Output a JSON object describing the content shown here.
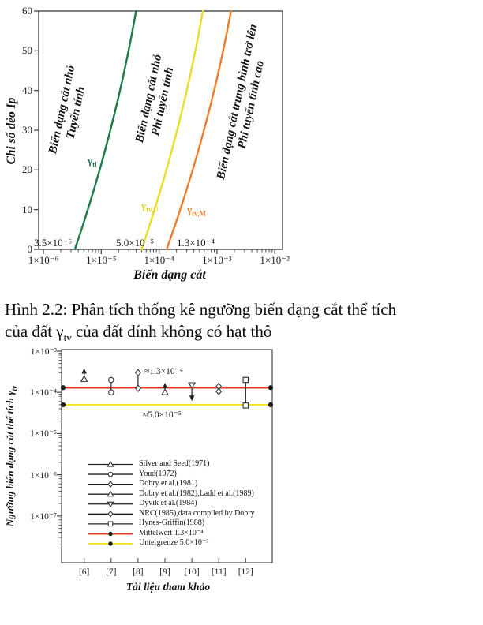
{
  "caption": {
    "line1": "Hình 2.2: Phân tích thống kê ngưỡng biến dạng cắt thể tích",
    "line2_pre": "của đất γ",
    "line2_sub": "tv",
    "line2_post": " của đất dính không có hạt thô"
  },
  "chart_data": [
    {
      "type": "line",
      "title": "",
      "xlabel": "Biến dạng cắt",
      "ylabel": "Chi số dẻo Ip",
      "xscale": "log",
      "xlim": [
        1e-06,
        0.01
      ],
      "ylim": [
        0,
        60
      ],
      "grid": false,
      "ytick_labels": [
        "0",
        "10",
        "20",
        "30",
        "40",
        "50",
        "60"
      ],
      "ytick_values": [
        0,
        10,
        20,
        30,
        40,
        50,
        60
      ],
      "xtick_labels": [
        "1×10⁻⁶",
        "1×10⁻⁵",
        "1×10⁻⁴",
        "1×10⁻³",
        "1×10⁻²"
      ],
      "xtick_exps": [
        -6,
        -5,
        -4,
        -3,
        -2
      ],
      "curves": [
        {
          "gamma": "γ",
          "sub": "tl",
          "color": "#1e7a46",
          "strain_at_Ip0": 3.5e-06,
          "strain_at_Ip60": 4e-05
        },
        {
          "gamma": "γ",
          "sub": "tv,U",
          "color": "#e9dd25",
          "strain_at_Ip0": 5e-05,
          "strain_at_Ip60": 0.00057
        },
        {
          "gamma": "γ",
          "sub": "tv,M",
          "color": "#ee7d2a",
          "strain_at_Ip0": 0.000135,
          "strain_at_Ip60": 0.00175
        }
      ],
      "threshold_annotations": [
        "3.5×10⁻⁶",
        "5.0×10⁻⁵",
        "1.3×10⁻⁴"
      ],
      "zones": [
        {
          "line1": "Biến dạng cắt nhỏ",
          "line2": "Tuyến tính"
        },
        {
          "line1": "Biến dạng cắt nhỏ",
          "line2": "Phi tuyến tính"
        },
        {
          "line1": "Biến dạng cắt trung bình trở lên",
          "line2": "Phi tuyến tính cao"
        }
      ]
    },
    {
      "type": "scatter",
      "title": "",
      "xlabel": "Tài liệu tham khảo",
      "ylabel_pre": "Ngưỡng biến dạng cắt thể tích γ",
      "ylabel_sub": "tv",
      "yscale": "log",
      "ylim": [
        1e-08,
        0.0012
      ],
      "ytick_labels": [
        "1×10⁻³",
        "1×10⁻⁴",
        "1×10⁻⁵",
        "1×10⁻⁶",
        "1×10⁻⁷"
      ],
      "ytick_values": [
        0.001,
        0.0001,
        1e-05,
        1e-06,
        1e-07
      ],
      "categories": [
        "[6]",
        "[7]",
        "[8]",
        "[9]",
        "[10]",
        "[11]",
        "[12]"
      ],
      "mean_line": {
        "label": "Mittelwert",
        "value": 0.00013,
        "color": "#e5392c",
        "annotation": "≈1.3×10⁻⁴"
      },
      "lower_line": {
        "label": "Untergrenze",
        "value": 5e-05,
        "color": "#f1e52f",
        "annotation": "≈5.0×10⁻⁵"
      },
      "points": [
        {
          "category": "[6]",
          "marker": "triangle-up",
          "low": 0.00021,
          "high": 0.00034,
          "arrow": "up"
        },
        {
          "category": "[7]",
          "marker": "circle",
          "low": 0.0001,
          "high": 0.0002,
          "arrow": "none"
        },
        {
          "category": "[8]",
          "marker": "diamond",
          "low": 0.000125,
          "high": 0.0003,
          "arrow": "none"
        },
        {
          "category": "[9]",
          "marker": "triangle-up",
          "low": 0.0001,
          "high": 0.00015,
          "arrow": "up"
        },
        {
          "category": "[10]",
          "marker": "triangle-down",
          "low": 7e-05,
          "high": 0.00015,
          "arrow": "down"
        },
        {
          "category": "[11]",
          "marker": "diamond",
          "low": 0.000105,
          "high": 0.00014,
          "arrow": "none"
        },
        {
          "category": "[12]",
          "marker": "square",
          "low": 4.8e-05,
          "high": 0.0002,
          "arrow": "none"
        }
      ],
      "legend": [
        {
          "label": "Silver and Seed(1971)",
          "marker": "triangle-up",
          "line_color": "#222222"
        },
        {
          "label": "Youd(1972)",
          "marker": "circle",
          "line_color": "#222222"
        },
        {
          "label": "Dobry et al.(1981)",
          "marker": "diamond",
          "line_color": "#222222"
        },
        {
          "label": "Dobry et al.(1982),Ladd et al.(1989)",
          "marker": "triangle-up",
          "line_color": "#222222"
        },
        {
          "label": "Dyvik et al.(1984)",
          "marker": "triangle-down",
          "line_color": "#222222"
        },
        {
          "label": "NRC(1985),data compiled by Dobry",
          "marker": "diamond",
          "line_color": "#222222"
        },
        {
          "label": "Hynes-Griffin(1988)",
          "marker": "square",
          "line_color": "#222222"
        },
        {
          "label": "Mittelwert 1.3×10⁻⁴",
          "marker": "dot",
          "line_color": "#e5392c"
        },
        {
          "label": "Untergrenze 5.0×10⁻⁵",
          "marker": "dot",
          "line_color": "#f1e52f"
        }
      ]
    }
  ]
}
